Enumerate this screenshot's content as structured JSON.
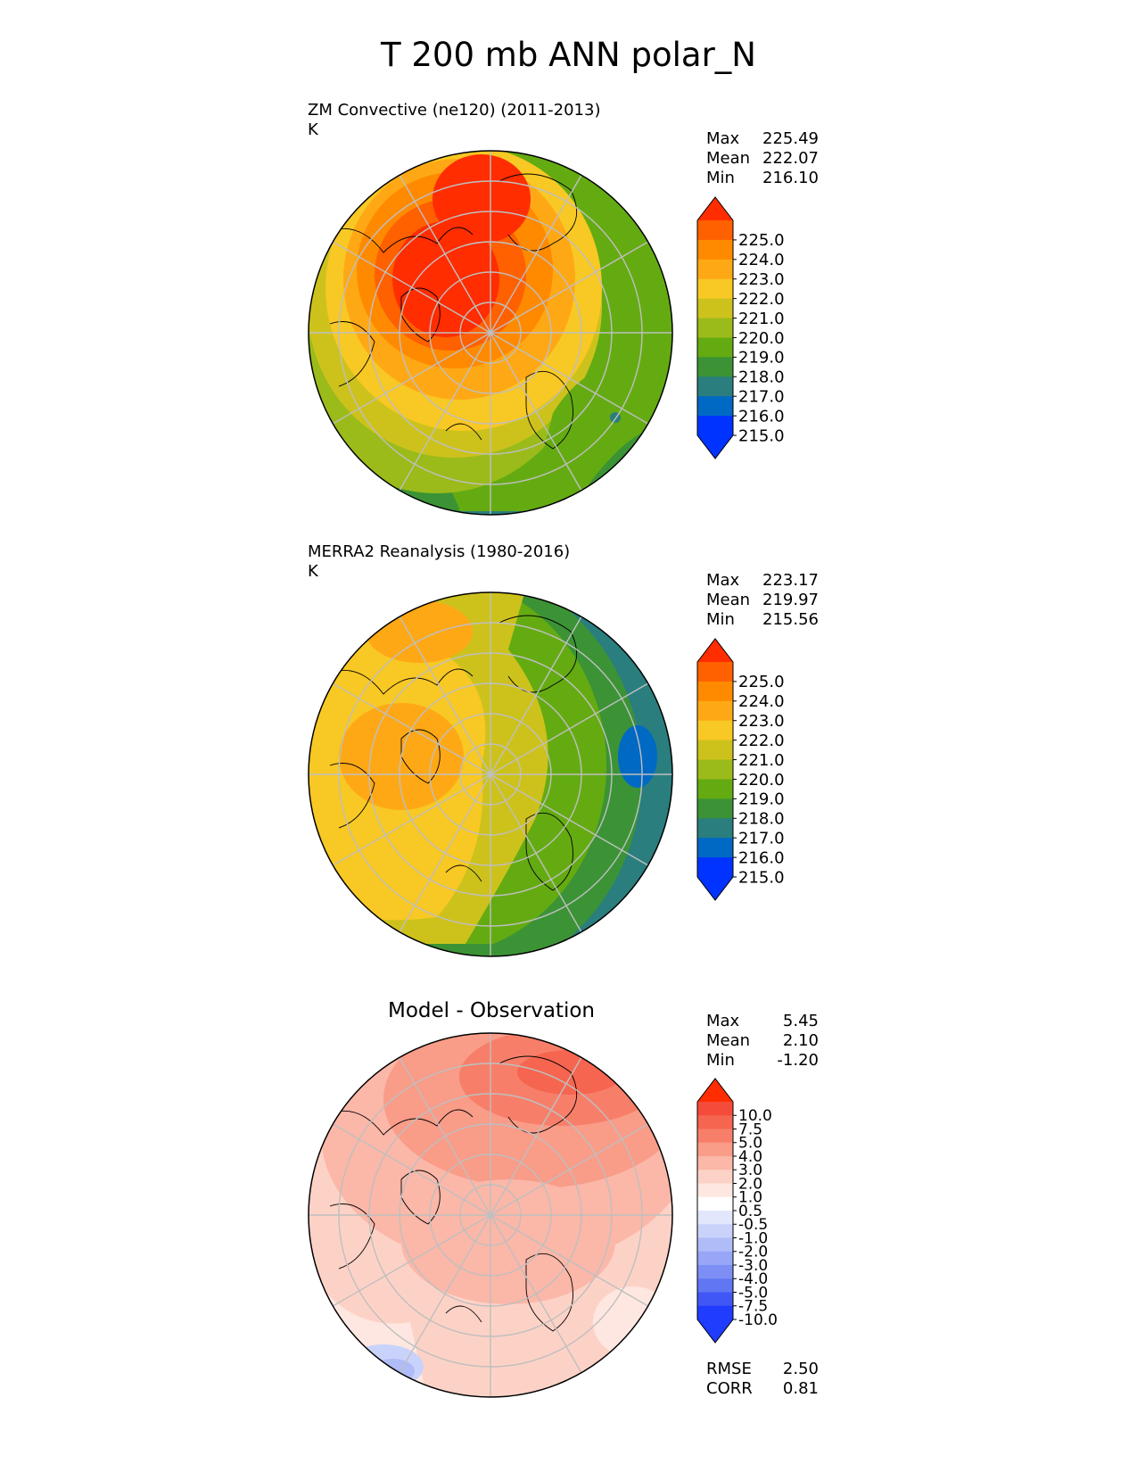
{
  "title": "T 200 mb ANN polar_N",
  "panels": [
    {
      "id": "test",
      "title": "ZM Convective (ne120) (2011-2013)",
      "units": "K",
      "stats": {
        "max": "225.49",
        "mean": "222.07",
        "min": "216.10"
      },
      "stat_labels": {
        "max": "Max",
        "mean": "Mean",
        "min": "Min"
      }
    },
    {
      "id": "ref",
      "title": "MERRA2 Reanalysis (1980-2016)",
      "units": "K",
      "stats": {
        "max": "223.17",
        "mean": "219.97",
        "min": "215.56"
      },
      "stat_labels": {
        "max": "Max",
        "mean": "Mean",
        "min": "Min"
      }
    },
    {
      "id": "diff",
      "title": "Model - Observation",
      "units": "",
      "stats": {
        "max": "5.45",
        "mean": "2.10",
        "min": "-1.20"
      },
      "stat_labels": {
        "max": "Max",
        "mean": "Mean",
        "min": "Min"
      },
      "metrics": {
        "rmse_label": "RMSE",
        "rmse": "2.50",
        "corr_label": "CORR",
        "corr": "0.81"
      }
    }
  ],
  "colorbars": {
    "field": {
      "ticks": [
        "225.0",
        "224.0",
        "223.0",
        "222.0",
        "221.0",
        "220.0",
        "219.0",
        "218.0",
        "217.0",
        "216.0",
        "215.0"
      ],
      "colors": [
        "#ff2d00",
        "#ff6000",
        "#ff8a00",
        "#ffa816",
        "#f8c824",
        "#cdc21c",
        "#9bbb1a",
        "#64ab12",
        "#3b9336",
        "#2a7e7e",
        "#0069c4",
        "#0033ff",
        "#0033ff"
      ]
    },
    "diff": {
      "ticks": [
        "10.0",
        "7.5",
        "5.0",
        "4.0",
        "3.0",
        "2.0",
        "1.0",
        "0.5",
        "-0.5",
        "-1.0",
        "-2.0",
        "-3.0",
        "-4.0",
        "-5.0",
        "-7.5",
        "-10.0"
      ],
      "colors": [
        "#ff2d00",
        "#f44b3a",
        "#f6654f",
        "#f77f6a",
        "#f99c88",
        "#fbb7a8",
        "#fdd2c6",
        "#fee7e0",
        "#ffffff",
        "#e2e7fc",
        "#c9d2fa",
        "#b0bcf8",
        "#97a6f6",
        "#7d8ff4",
        "#6076f2",
        "#4157f5",
        "#1f3cff",
        "#1f3cff"
      ]
    }
  }
}
